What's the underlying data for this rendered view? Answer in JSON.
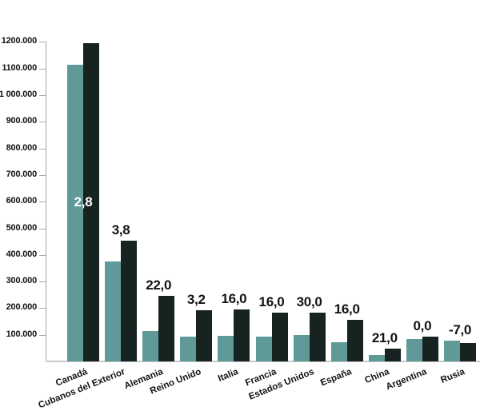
{
  "chart_data": {
    "type": "bar",
    "categories": [
      "Canadá",
      "Cubanos del Exterior",
      "Alemania",
      "Reino Unido",
      "Italia",
      "Francia",
      "Estados Unidos",
      "España",
      "China",
      "Argentina",
      "Rusia"
    ],
    "series": [
      {
        "name": "teal-series",
        "color": "#5f9a98",
        "values": [
          1115000,
          375000,
          115000,
          93000,
          95000,
          92000,
          98000,
          72000,
          25000,
          85000,
          78000
        ]
      },
      {
        "name": "black-series",
        "color": "#162321",
        "values": [
          1195000,
          452000,
          245000,
          192000,
          195000,
          182000,
          182000,
          155000,
          48000,
          92000,
          68000
        ]
      }
    ],
    "value_labels": [
      "2,8",
      "3,8",
      "22,0",
      "3,2",
      "16,0",
      "16,0",
      "30,0",
      "16,0",
      "21,0",
      "0,0",
      "-7,0"
    ],
    "value_label_inside": [
      true,
      false,
      false,
      false,
      false,
      false,
      false,
      false,
      false,
      false,
      false
    ],
    "y_ticks": [
      {
        "value": 100000,
        "label": "100.000"
      },
      {
        "value": 200000,
        "label": "200.000"
      },
      {
        "value": 300000,
        "label": "300.000"
      },
      {
        "value": 400000,
        "label": "400.000"
      },
      {
        "value": 500000,
        "label": "500.000"
      },
      {
        "value": 600000,
        "label": "600.000"
      },
      {
        "value": 700000,
        "label": "700.000"
      },
      {
        "value": 800000,
        "label": "800.000"
      },
      {
        "value": 900000,
        "label": "900.000"
      },
      {
        "value": 1000000,
        "label": "1 000.000"
      },
      {
        "value": 1100000,
        "label": "1100.000"
      },
      {
        "value": 1200000,
        "label": "1200.000"
      }
    ],
    "ylim": [
      0,
      1250000
    ],
    "grid": false,
    "legend": "none"
  },
  "colors": {
    "bar_teal": "#5f9a98",
    "bar_black": "#162321",
    "axis_gray": "#a8a8a8",
    "baseline_gray": "#c9c9c9",
    "text_black": "#121212",
    "value_label_inside_white": "#ffffff",
    "background": "#ffffff"
  }
}
